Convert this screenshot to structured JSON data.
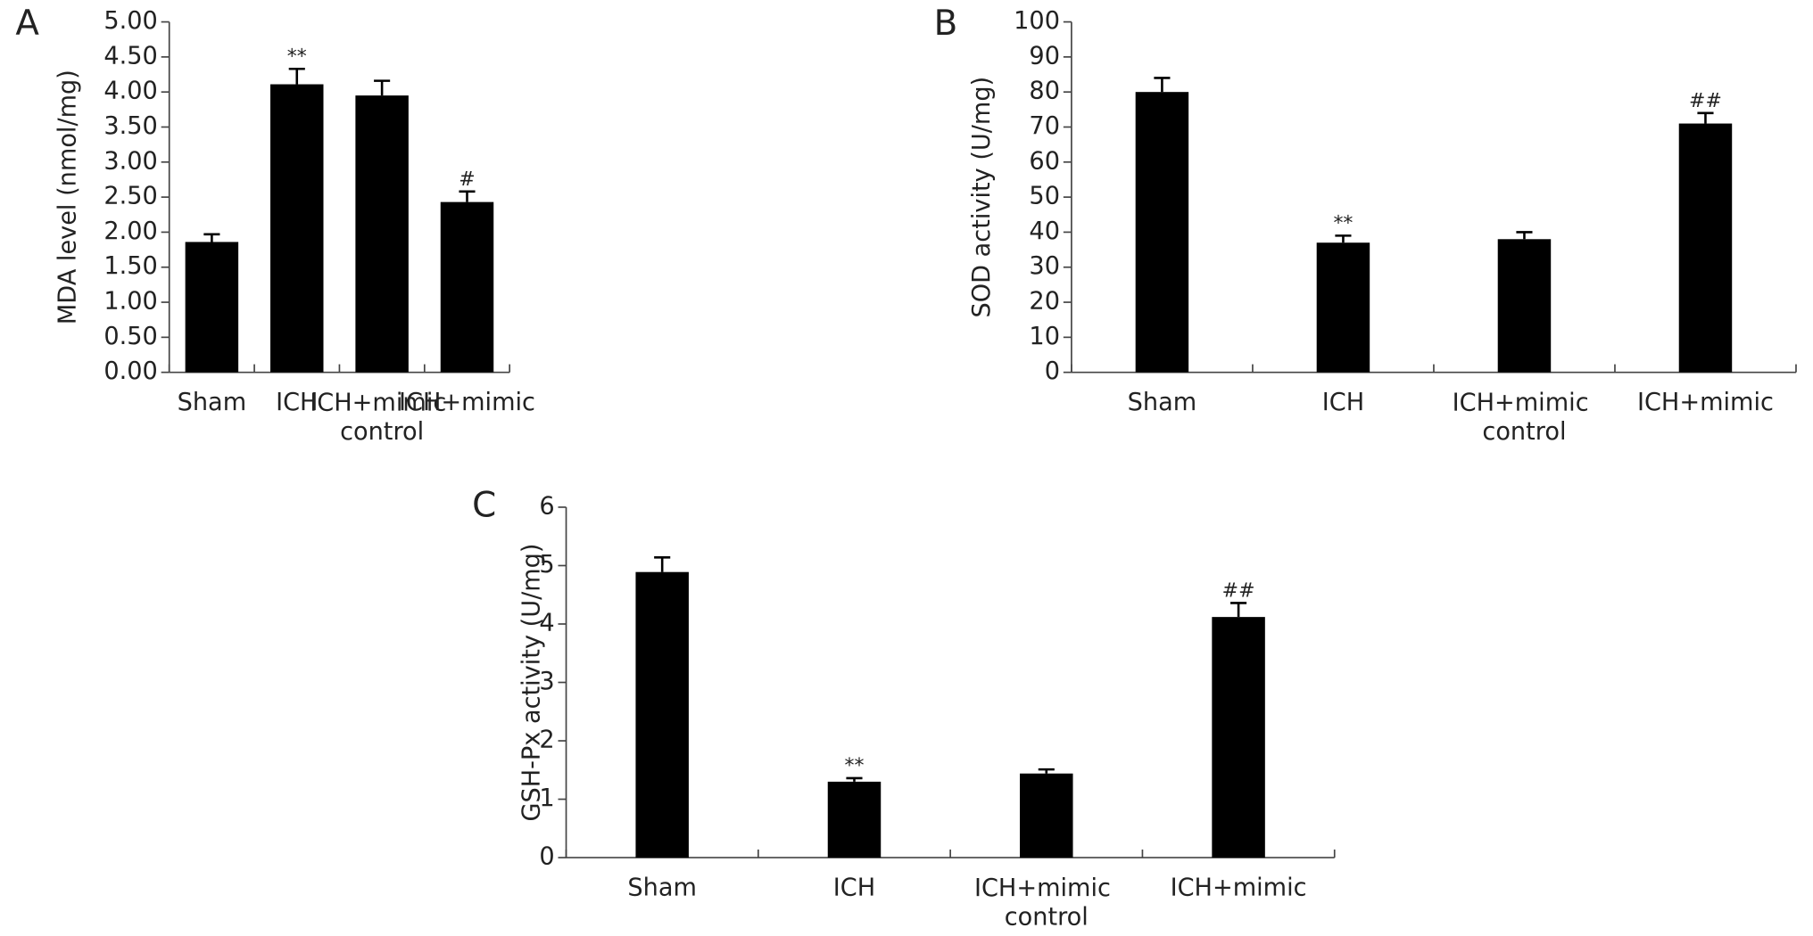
{
  "chart_data": [
    {
      "type": "bar",
      "panel": "A",
      "ylabel": "MDA level (nmol/mg)",
      "categories": [
        "Sham",
        "ICH",
        "ICH+mimic control",
        "ICH+mimic"
      ],
      "values": [
        1.86,
        4.11,
        3.95,
        2.43
      ],
      "errors": [
        0.11,
        0.22,
        0.21,
        0.15
      ],
      "annotations": [
        null,
        "**",
        null,
        "#"
      ],
      "color": "#000000",
      "ylim": [
        0,
        5
      ],
      "yticks": [
        {
          "value": 0,
          "label": "0.00"
        },
        {
          "value": 0.5,
          "label": "0.50"
        },
        {
          "value": 1,
          "label": "1.00"
        },
        {
          "value": 1.5,
          "label": "1.50"
        },
        {
          "value": 2,
          "label": "2.00"
        },
        {
          "value": 2.5,
          "label": "2.50"
        },
        {
          "value": 3,
          "label": "3.00"
        },
        {
          "value": 3.5,
          "label": "3.50"
        },
        {
          "value": 4,
          "label": "4.00"
        },
        {
          "value": 4.5,
          "label": "4.50"
        },
        {
          "value": 5,
          "label": "5.00"
        }
      ]
    },
    {
      "type": "bar",
      "panel": "B",
      "ylabel": "SOD activity (U/mg)",
      "categories": [
        "Sham",
        "ICH",
        "ICH+mimic control",
        "ICH+mimic"
      ],
      "values": [
        80,
        37,
        38,
        71
      ],
      "errors": [
        4,
        2,
        2,
        3
      ],
      "annotations": [
        null,
        "**",
        null,
        "##"
      ],
      "color": "#000000",
      "ylim": [
        0,
        100
      ],
      "yticks": [
        0,
        10,
        20,
        30,
        40,
        50,
        60,
        70,
        80,
        90,
        100
      ]
    },
    {
      "type": "bar",
      "panel": "C",
      "ylabel": "GSH-Px activity (U/mg)",
      "categories": [
        "Sham",
        "ICH",
        "ICH+mimic control",
        "ICH+mimic"
      ],
      "values": [
        4.89,
        1.3,
        1.44,
        4.12
      ],
      "errors": [
        0.25,
        0.06,
        0.07,
        0.24
      ],
      "annotations": [
        null,
        "**",
        null,
        "##"
      ],
      "color": "#000000",
      "ylim": [
        0,
        6
      ],
      "yticks": [
        0,
        1,
        2,
        3,
        4,
        5,
        6
      ]
    }
  ]
}
